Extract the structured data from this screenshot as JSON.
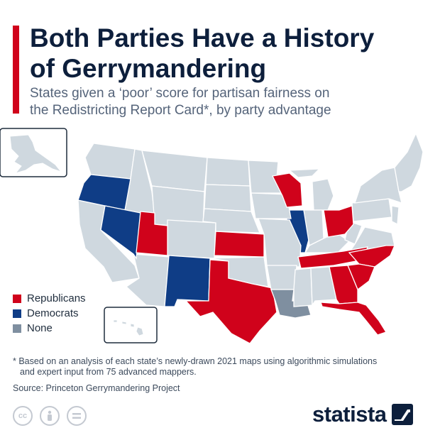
{
  "header": {
    "title_line1": "Both Parties Have a History",
    "title_line2": "of Gerrymandering",
    "subtitle_line1": "States given a ‘poor’ score for partisan fairness on",
    "subtitle_line2": "the Redistricting Report Card*, by party advantage"
  },
  "colors": {
    "republicans": "#d0021b",
    "democrats": "#0f3d86",
    "none": "#7f8fa0",
    "other_states": "#cfd8df",
    "border": "#ffffff"
  },
  "map": {
    "states": [
      {
        "name": "Oregon",
        "party": "Democrats"
      },
      {
        "name": "Nevada",
        "party": "Democrats"
      },
      {
        "name": "New Mexico",
        "party": "Democrats"
      },
      {
        "name": "Illinois",
        "party": "Democrats"
      },
      {
        "name": "Utah",
        "party": "Republicans"
      },
      {
        "name": "Texas",
        "party": "Republicans"
      },
      {
        "name": "Kansas",
        "party": "Republicans"
      },
      {
        "name": "Wisconsin",
        "party": "Republicans"
      },
      {
        "name": "Ohio",
        "party": "Republicans"
      },
      {
        "name": "Tennessee",
        "party": "Republicans"
      },
      {
        "name": "North Carolina",
        "party": "Republicans"
      },
      {
        "name": "South Carolina",
        "party": "Republicans"
      },
      {
        "name": "Georgia",
        "party": "Republicans"
      },
      {
        "name": "Florida",
        "party": "Republicans"
      },
      {
        "name": "Louisiana",
        "party": "None"
      }
    ]
  },
  "legend": {
    "items": [
      {
        "label": "Republicans",
        "color": "#d0021b"
      },
      {
        "label": "Democrats",
        "color": "#0f3d86"
      },
      {
        "label": "None",
        "color": "#7f8fa0"
      }
    ]
  },
  "footer": {
    "footnote_line1": "* Based on an analysis of each state’s newly-drawn 2021 maps using algorithmic simulations",
    "footnote_line2": "and expert input from 75 advanced mappers.",
    "source": "Source: Princeton Gerrymandering Project",
    "brand": "statista"
  },
  "icons": [
    "cc-icon",
    "attribution-icon",
    "no-derivatives-icon",
    "statista-logo-icon"
  ]
}
